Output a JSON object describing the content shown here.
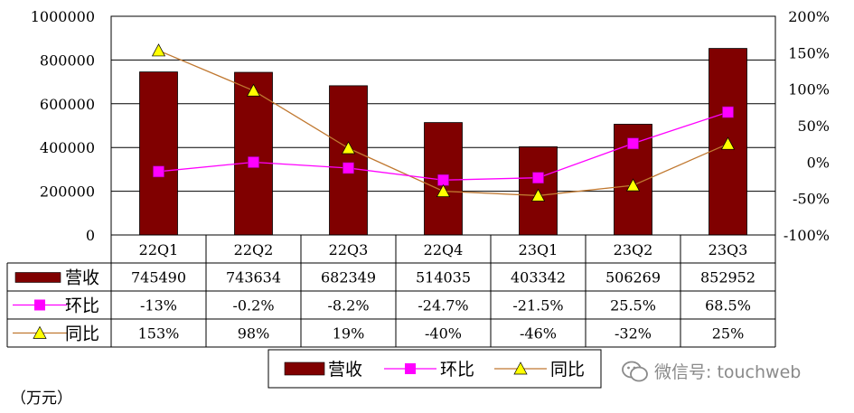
{
  "chart_data": {
    "type": "bar",
    "categories": [
      "22Q1",
      "22Q2",
      "22Q3",
      "22Q4",
      "23Q1",
      "23Q2",
      "23Q3"
    ],
    "series": [
      {
        "name": "营收",
        "type": "bar",
        "axis": "left",
        "values": [
          745490,
          743634,
          682349,
          514035,
          403342,
          506269,
          852952
        ],
        "labels": [
          "745490",
          "743634",
          "682349",
          "514035",
          "403342",
          "506269",
          "852952"
        ]
      },
      {
        "name": "环比",
        "type": "line",
        "axis": "right",
        "values": [
          -13,
          -0.2,
          -8.2,
          -24.7,
          -21.5,
          25.5,
          68.5
        ],
        "labels": [
          "-13%",
          "-0.2%",
          "-8.2%",
          "-24.7%",
          "-21.5%",
          "25.5%",
          "68.5%"
        ]
      },
      {
        "name": "同比",
        "type": "line",
        "axis": "right",
        "values": [
          153,
          98,
          19,
          -40,
          -46,
          -32,
          25
        ],
        "labels": [
          "153%",
          "98%",
          "19%",
          "-40%",
          "-46%",
          "-32%",
          "25%"
        ]
      }
    ],
    "left_axis": {
      "min": 0,
      "max": 1000000,
      "step": 200000,
      "ticks": [
        "0",
        "200000",
        "400000",
        "600000",
        "800000",
        "1000000"
      ]
    },
    "right_axis": {
      "min": -100,
      "max": 200,
      "step": 50,
      "ticks": [
        "-100%",
        "-50%",
        "0%",
        "50%",
        "100%",
        "150%",
        "200%"
      ]
    },
    "legend_position": "bottom",
    "colors": {
      "bar": "#800000",
      "mom": "#ff00ff",
      "yoy_line": "#c07830",
      "yoy_marker": "#ffff00"
    }
  },
  "unit_label": "（万元）",
  "watermark": "微信号: touchweb",
  "watermark_icon": "wechat-icon"
}
